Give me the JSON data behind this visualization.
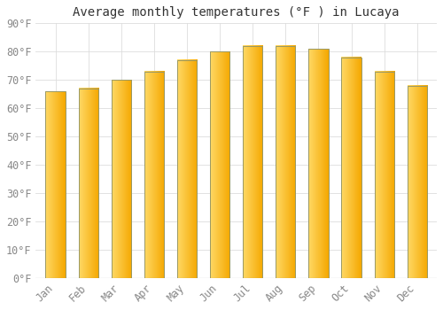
{
  "title": "Average monthly temperatures (°F ) in Lucaya",
  "months": [
    "Jan",
    "Feb",
    "Mar",
    "Apr",
    "May",
    "Jun",
    "Jul",
    "Aug",
    "Sep",
    "Oct",
    "Nov",
    "Dec"
  ],
  "values": [
    66,
    67,
    70,
    73,
    77,
    80,
    82,
    82,
    81,
    78,
    73,
    68
  ],
  "bar_color_left": "#FFD966",
  "bar_color_right": "#F5A800",
  "bar_edge_color": "#999966",
  "ylim": [
    0,
    90
  ],
  "yticks": [
    0,
    10,
    20,
    30,
    40,
    50,
    60,
    70,
    80,
    90
  ],
  "background_color": "#FFFFFF",
  "plot_bg_color": "#FFFFFF",
  "grid_color": "#DDDDDD",
  "title_fontsize": 10,
  "tick_fontsize": 8.5,
  "bar_width": 0.6
}
